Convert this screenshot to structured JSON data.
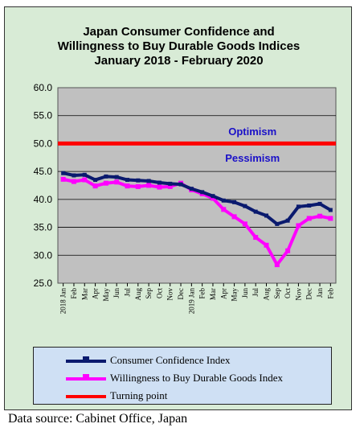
{
  "title_lines": [
    "Japan Consumer Confidence and",
    "Willingness to Buy Durable Goods Indices",
    "January 2018 - February 2020"
  ],
  "source": "Data source: Cabinet Office, Japan",
  "colors": {
    "background": "#d8ebd6",
    "plot_area": "#c0c0c0",
    "consumer_confidence": "#0a1a6e",
    "durable_goods": "#ff00ff",
    "turning_point": "#ff0000",
    "annotation_text": "#1a10c8"
  },
  "chart_data": {
    "type": "line",
    "categories": [
      "2018 Jan",
      "Feb",
      "Mar",
      "Apr",
      "May",
      "Jun",
      "Jul",
      "Aug",
      "Sep",
      "Oct",
      "Nov",
      "Dec",
      "2019 Jan",
      "Feb",
      "Mar",
      "Apr",
      "May",
      "Jun",
      "Jul",
      "Aug",
      "Sep",
      "Oct",
      "Nov",
      "Dec",
      "Jan",
      "Feb"
    ],
    "series": [
      {
        "name": "Consumer Confidence Index",
        "values": [
          44.7,
          44.3,
          44.4,
          43.5,
          44.1,
          44.0,
          43.5,
          43.4,
          43.3,
          43.0,
          42.8,
          42.7,
          41.9,
          41.3,
          40.6,
          39.8,
          39.5,
          38.8,
          37.8,
          37.1,
          35.6,
          36.2,
          38.7,
          38.9,
          39.2,
          38.1
        ]
      },
      {
        "name": "Willingness to Buy Durable Goods Index",
        "values": [
          43.6,
          43.2,
          43.5,
          42.4,
          42.9,
          43.1,
          42.4,
          42.3,
          42.5,
          42.2,
          42.3,
          42.9,
          41.7,
          41.0,
          40.2,
          38.2,
          36.9,
          35.6,
          33.2,
          31.8,
          28.3,
          30.8,
          35.3,
          36.6,
          37.0,
          36.6
        ]
      },
      {
        "name": "Turning point",
        "values": [
          50,
          50,
          50,
          50,
          50,
          50,
          50,
          50,
          50,
          50,
          50,
          50,
          50,
          50,
          50,
          50,
          50,
          50,
          50,
          50,
          50,
          50,
          50,
          50,
          50,
          50
        ]
      }
    ],
    "y_ticks": [
      "25.0",
      "30.0",
      "35.0",
      "40.0",
      "45.0",
      "50.0",
      "55.0",
      "60.0"
    ],
    "ylim": [
      25,
      60
    ],
    "annotations": [
      {
        "text": "Optimism",
        "y": 51.5
      },
      {
        "text": "Pessimism",
        "y": 48.2
      }
    ],
    "grid": "horizontal",
    "legend_position": "bottom"
  }
}
